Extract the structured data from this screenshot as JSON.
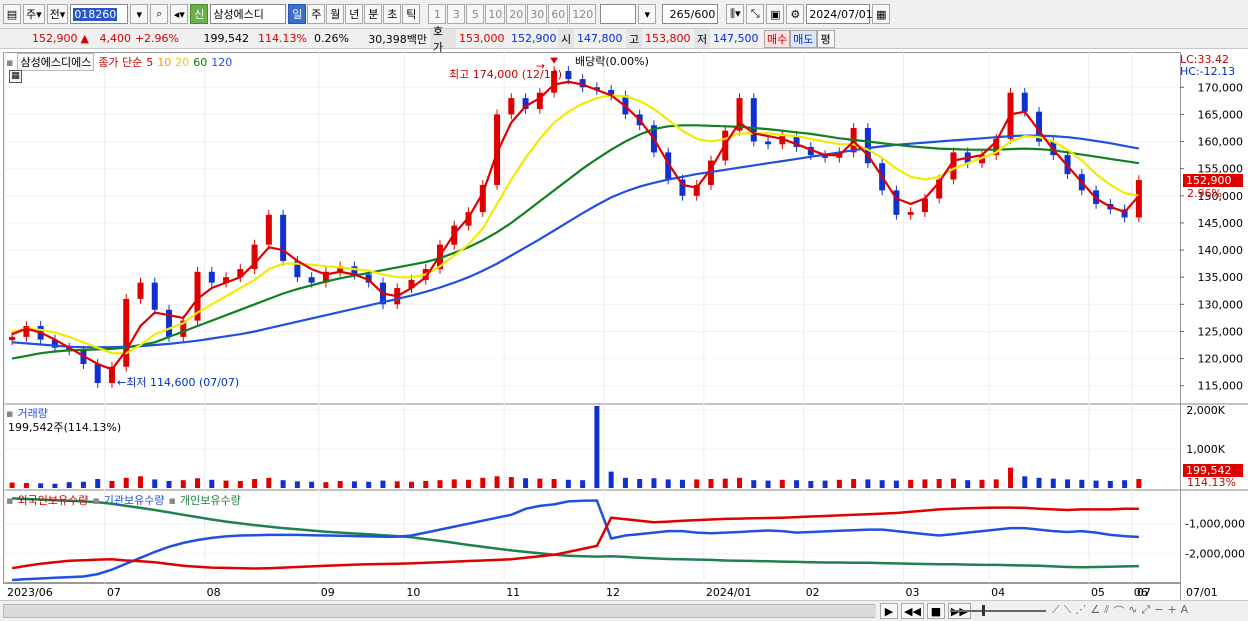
{
  "toolbar": {
    "period_type": "주",
    "compare": "전",
    "code": "018260",
    "new_badge": "신",
    "stock_name": "삼성에스디",
    "intervals": [
      "일",
      "주",
      "월",
      "년",
      "분",
      "초",
      "틱"
    ],
    "active_interval": "일",
    "minutes": [
      "1",
      "3",
      "5",
      "10",
      "20",
      "30",
      "60",
      "120"
    ],
    "count": "265",
    "count_total": "/600",
    "date": "2024/07/01"
  },
  "price_bar": {
    "price": "152,900",
    "change": "4,400",
    "change_pct": "+2.96%",
    "volume": "199,542",
    "volume_ratio": "114.13%",
    "turnover": "0.26%",
    "amount": "30,398백만",
    "ask_label": "호가",
    "ask": "153,000",
    "bid": "152,900",
    "open_label": "시",
    "open": "147,800",
    "high_label": "고",
    "high": "153,800",
    "low_label": "저",
    "low": "147,500",
    "buy_label": "매수",
    "sell_label": "매도",
    "eval_label": "평"
  },
  "legend": {
    "stock": "삼성에스디에스",
    "ma_prefix": "종가 단순",
    "ma_periods": [
      "5",
      "10",
      "20",
      "60",
      "120"
    ],
    "ma_colors": [
      "#e00000",
      "#ff9900",
      "#e8e800",
      "#008000",
      "#2050e0"
    ],
    "lc": "LC:33.42",
    "hc": "HC:-12.13",
    "volume_label": "거래량",
    "volume_value": "199,542주(114.13%)",
    "investor_foreign": "외국인보유수량",
    "investor_inst": "기관보유수량",
    "investor_indiv": "개인보유수량"
  },
  "annotations": {
    "high_note": "최고 174,000 (12/14)",
    "dividend_note": "배당락(0.00%)",
    "low_note": "최저 114,600 (07/07)",
    "price_tag": "152,900",
    "pct_tag": "2.96%",
    "vol_tag": "199,542",
    "vol_pct_tag": "114.13%"
  },
  "chart_data": {
    "type": "candlestick",
    "y_ticks": [
      "170,000",
      "165,000",
      "160,000",
      "155,000",
      "150,000",
      "145,000",
      "140,000",
      "135,000",
      "130,000",
      "125,000",
      "120,000",
      "115,000"
    ],
    "vol_ticks": [
      "2,000K",
      "1,000K"
    ],
    "inv_ticks": [
      "-1,000,000",
      "-2,000,000"
    ],
    "x_labels": [
      "2023/06",
      "07",
      "08",
      "09",
      "10",
      "11",
      "12",
      "2024/01",
      "02",
      "03",
      "04",
      "05",
      "06",
      "07",
      "07/01"
    ],
    "ylim": [
      112000,
      176500
    ],
    "close_series": [
      124000,
      126000,
      123500,
      122000,
      121500,
      119000,
      115500,
      118500,
      131000,
      134000,
      129000,
      124000,
      127000,
      136000,
      134000,
      135000,
      136500,
      141000,
      146500,
      138000,
      135000,
      134000,
      136000,
      137000,
      135500,
      134000,
      130000,
      133000,
      134500,
      136500,
      141000,
      144500,
      147000,
      152000,
      165000,
      168000,
      166000,
      169000,
      173000,
      171500,
      170000,
      169500,
      168500,
      165000,
      163000,
      158000,
      153000,
      150000,
      152000,
      156500,
      162000,
      168000,
      160000,
      159500,
      161000,
      159000,
      157500,
      157000,
      158000,
      162500,
      156000,
      151000,
      146500,
      147000,
      149500,
      153000,
      158000,
      156000,
      157500,
      160500,
      169000,
      165500,
      160000,
      157500,
      154000,
      151000,
      148500,
      147500,
      146000,
      152900
    ],
    "ma5": [
      124500,
      125500,
      124800,
      123500,
      122000,
      120500,
      119000,
      118000,
      121500,
      126000,
      128500,
      128000,
      127500,
      131000,
      133000,
      134000,
      135000,
      137500,
      140500,
      140000,
      138000,
      136500,
      135500,
      136000,
      135500,
      134500,
      132000,
      131500,
      133000,
      135000,
      139000,
      143000,
      146000,
      150500,
      158000,
      163500,
      166500,
      168000,
      170500,
      171000,
      170500,
      169500,
      168500,
      166500,
      164000,
      160500,
      156000,
      152000,
      151500,
      155000,
      159500,
      163500,
      161500,
      161000,
      160500,
      159500,
      158500,
      157500,
      157500,
      160000,
      157500,
      153500,
      149500,
      148500,
      149500,
      152500,
      156500,
      157000,
      157500,
      160000,
      165000,
      165500,
      162000,
      158500,
      155500,
      152500,
      149500,
      148000,
      147000,
      150000
    ],
    "ma20": [
      125000,
      125500,
      125300,
      124800,
      124000,
      123000,
      122000,
      121000,
      121000,
      122500,
      124500,
      125500,
      126500,
      128500,
      130000,
      131500,
      133000,
      134500,
      136500,
      137500,
      137500,
      137300,
      137000,
      136800,
      136500,
      136200,
      135500,
      135000,
      135000,
      135500,
      137000,
      139000,
      141000,
      144000,
      148500,
      153000,
      157000,
      160500,
      163500,
      165500,
      167000,
      168000,
      168500,
      168300,
      167500,
      166000,
      164000,
      162000,
      160500,
      160000,
      160500,
      161500,
      161500,
      161500,
      161200,
      161000,
      160500,
      160000,
      159500,
      159500,
      158500,
      157000,
      155000,
      153500,
      153000,
      153500,
      155000,
      156000,
      157000,
      158000,
      160000,
      161000,
      160800,
      160000,
      158500,
      156500,
      154000,
      152000,
      150500,
      150000
    ],
    "ma60": [
      120000,
      120500,
      121000,
      121300,
      121500,
      121600,
      121700,
      121800,
      122000,
      122500,
      123000,
      124000,
      125000,
      126000,
      127000,
      128000,
      129000,
      130000,
      131000,
      132000,
      132800,
      133500,
      134200,
      134800,
      135300,
      135800,
      136300,
      136800,
      137300,
      137800,
      138500,
      139500,
      140500,
      141800,
      143300,
      145000,
      147000,
      149000,
      151000,
      153000,
      155000,
      156800,
      158500,
      160000,
      161300,
      162300,
      162800,
      163000,
      163000,
      162900,
      162800,
      162700,
      162500,
      162300,
      162000,
      161700,
      161400,
      161000,
      160600,
      160300,
      160000,
      159700,
      159400,
      159100,
      158900,
      158700,
      158600,
      158500,
      158500,
      158500,
      158600,
      158700,
      158600,
      158400,
      158000,
      157600,
      157200,
      156800,
      156400,
      156000
    ],
    "ma120": [
      123000,
      122800,
      122600,
      122400,
      122200,
      122100,
      122100,
      122100,
      122200,
      122300,
      122500,
      122700,
      123000,
      123300,
      123700,
      124100,
      124500,
      125000,
      125600,
      126200,
      126800,
      127400,
      128000,
      128600,
      129200,
      129800,
      130400,
      131000,
      131600,
      132300,
      133100,
      134000,
      135000,
      136200,
      137500,
      139000,
      140500,
      142000,
      143600,
      145200,
      146800,
      148300,
      149700,
      150800,
      151700,
      152400,
      153000,
      153500,
      154000,
      154400,
      154800,
      155200,
      155600,
      156000,
      156400,
      156800,
      157200,
      157600,
      158000,
      158400,
      158800,
      159100,
      159400,
      159600,
      159800,
      160000,
      160200,
      160400,
      160600,
      160800,
      161000,
      161100,
      161100,
      161000,
      160800,
      160500,
      160100,
      159700,
      159200,
      158700
    ],
    "volume": [
      140,
      130,
      120,
      110,
      150,
      160,
      230,
      180,
      260,
      300,
      220,
      180,
      200,
      250,
      210,
      190,
      180,
      230,
      260,
      200,
      170,
      160,
      150,
      180,
      170,
      160,
      190,
      170,
      160,
      180,
      200,
      220,
      210,
      260,
      300,
      280,
      250,
      240,
      230,
      210,
      200,
      2100,
      420,
      260,
      230,
      250,
      220,
      210,
      220,
      230,
      240,
      260,
      200,
      190,
      210,
      200,
      180,
      190,
      210,
      230,
      220,
      200,
      190,
      210,
      220,
      230,
      240,
      200,
      210,
      220,
      520,
      300,
      260,
      240,
      220,
      210,
      190,
      180,
      200,
      230
    ],
    "vol_ylim": [
      0,
      2100
    ],
    "foreign_holdings": [
      -2500000,
      -2420000,
      -2350000,
      -2300000,
      -2250000,
      -2230000,
      -2210000,
      -2200000,
      -2240000,
      -2270000,
      -2300000,
      -2360000,
      -2420000,
      -2450000,
      -2480000,
      -2490000,
      -2500000,
      -2510000,
      -2500000,
      -2480000,
      -2460000,
      -2440000,
      -2420000,
      -2400000,
      -2380000,
      -2370000,
      -2360000,
      -2350000,
      -2340000,
      -2320000,
      -2300000,
      -2280000,
      -2260000,
      -2240000,
      -2220000,
      -2200000,
      -2150000,
      -2100000,
      -2050000,
      -1950000,
      -1850000,
      -1750000,
      -800000,
      -850000,
      -900000,
      -950000,
      -930000,
      -900000,
      -880000,
      -860000,
      -840000,
      -830000,
      -820000,
      -810000,
      -800000,
      -780000,
      -760000,
      -740000,
      -720000,
      -700000,
      -680000,
      -660000,
      -640000,
      -600000,
      -560000,
      -520000,
      -500000,
      -480000,
      -470000,
      -460000,
      -460000,
      -470000,
      -500000,
      -520000,
      -540000,
      -520000,
      -520000,
      -520000,
      -500000,
      -500000
    ],
    "inst_holdings": [
      -2900000,
      -2870000,
      -2850000,
      -2820000,
      -2800000,
      -2780000,
      -2700000,
      -2550000,
      -2350000,
      -2150000,
      -1950000,
      -1780000,
      -1650000,
      -1550000,
      -1480000,
      -1430000,
      -1400000,
      -1390000,
      -1380000,
      -1380000,
      -1380000,
      -1390000,
      -1400000,
      -1410000,
      -1420000,
      -1430000,
      -1440000,
      -1440000,
      -1400000,
      -1300000,
      -1200000,
      -1100000,
      -1000000,
      -900000,
      -800000,
      -700000,
      -500000,
      -400000,
      -350000,
      -250000,
      -230000,
      -220000,
      -1500000,
      -1400000,
      -1350000,
      -1300000,
      -1250000,
      -1250000,
      -1300000,
      -1320000,
      -1300000,
      -1280000,
      -1250000,
      -1230000,
      -1250000,
      -1300000,
      -1280000,
      -1260000,
      -1240000,
      -1220000,
      -1200000,
      -1200000,
      -1250000,
      -1300000,
      -1350000,
      -1400000,
      -1350000,
      -1300000,
      -1250000,
      -1200000,
      -1150000,
      -1150000,
      -1200000,
      -1250000,
      -1280000,
      -1250000,
      -1300000,
      -1380000,
      -1420000,
      -1450000
    ],
    "indiv_holdings": [
      -150000,
      -170000,
      -190000,
      -210000,
      -230000,
      -250000,
      -280000,
      -330000,
      -400000,
      -470000,
      -540000,
      -620000,
      -700000,
      -780000,
      -860000,
      -930000,
      -990000,
      -1050000,
      -1100000,
      -1150000,
      -1190000,
      -1230000,
      -1270000,
      -1300000,
      -1330000,
      -1360000,
      -1390000,
      -1420000,
      -1460000,
      -1520000,
      -1580000,
      -1650000,
      -1720000,
      -1780000,
      -1840000,
      -1900000,
      -1950000,
      -2000000,
      -2050000,
      -2080000,
      -2100000,
      -2110000,
      -2100000,
      -2120000,
      -2150000,
      -2170000,
      -2190000,
      -2200000,
      -2210000,
      -2220000,
      -2240000,
      -2250000,
      -2260000,
      -2270000,
      -2280000,
      -2290000,
      -2300000,
      -2310000,
      -2310000,
      -2320000,
      -2320000,
      -2330000,
      -2340000,
      -2350000,
      -2360000,
      -2370000,
      -2370000,
      -2380000,
      -2390000,
      -2390000,
      -2400000,
      -2410000,
      -2420000,
      -2440000,
      -2460000,
      -2470000,
      -2460000,
      -2450000,
      -2440000,
      -2430000
    ],
    "inv_ylim": [
      -3000000,
      0
    ]
  }
}
